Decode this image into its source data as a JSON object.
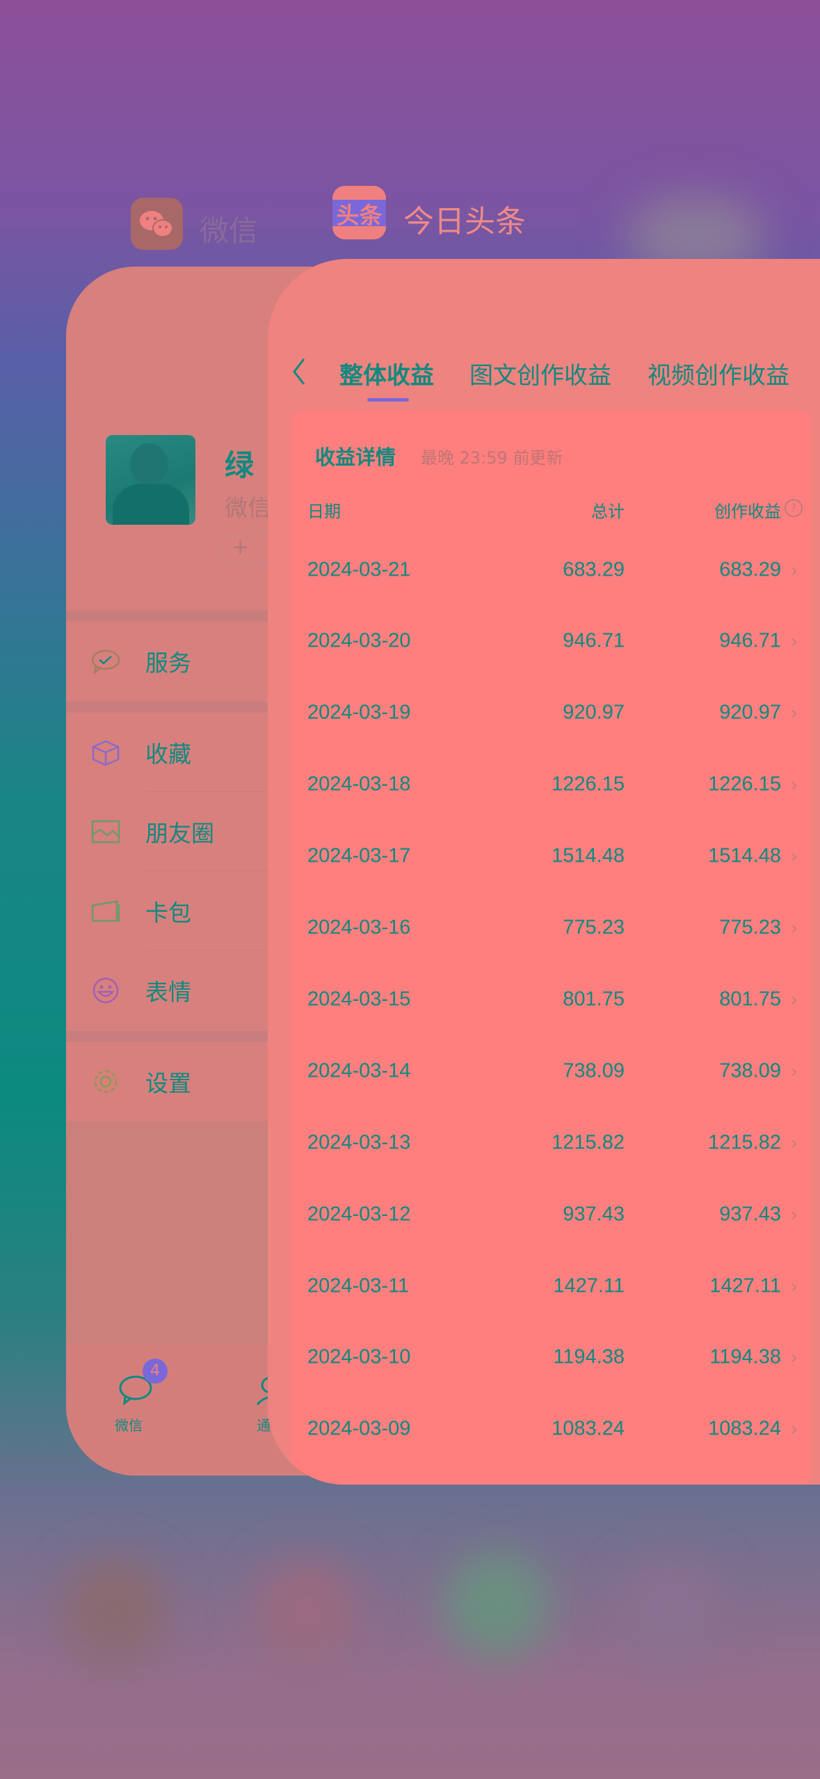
{
  "switcher": {
    "apps": [
      {
        "name": "微信",
        "icon": "wechat-logo"
      },
      {
        "name": "今日头条",
        "icon": "toutiao-logo",
        "icon_text": "头条"
      }
    ]
  },
  "wechat": {
    "profile": {
      "name": "绿",
      "subtitle": "微信",
      "status_button": "+"
    },
    "menu": [
      {
        "label": "服务",
        "icon": "service-icon"
      },
      {
        "label": "收藏",
        "icon": "favorites-icon"
      },
      {
        "label": "朋友圈",
        "icon": "moments-icon"
      },
      {
        "label": "卡包",
        "icon": "card-wallet-icon"
      },
      {
        "label": "表情",
        "icon": "sticker-icon"
      },
      {
        "label": "设置",
        "icon": "settings-icon"
      }
    ],
    "tabbar": [
      {
        "label": "微信",
        "badge": "4"
      },
      {
        "label": "通"
      }
    ]
  },
  "toutiao": {
    "tabs": [
      {
        "label": "整体收益",
        "active": true
      },
      {
        "label": "图文创作收益"
      },
      {
        "label": "视频创作收益"
      }
    ],
    "panel": {
      "title": "收益详情",
      "update_note": "最晚 23:59 前更新",
      "headers": {
        "date": "日期",
        "total": "总计",
        "creation": "创作收益"
      },
      "rows": [
        {
          "date": "2024-03-21",
          "total": "683.29",
          "creation": "683.29"
        },
        {
          "date": "2024-03-20",
          "total": "946.71",
          "creation": "946.71"
        },
        {
          "date": "2024-03-19",
          "total": "920.97",
          "creation": "920.97"
        },
        {
          "date": "2024-03-18",
          "total": "1226.15",
          "creation": "1226.15"
        },
        {
          "date": "2024-03-17",
          "total": "1514.48",
          "creation": "1514.48"
        },
        {
          "date": "2024-03-16",
          "total": "775.23",
          "creation": "775.23"
        },
        {
          "date": "2024-03-15",
          "total": "801.75",
          "creation": "801.75"
        },
        {
          "date": "2024-03-14",
          "total": "738.09",
          "creation": "738.09"
        },
        {
          "date": "2024-03-13",
          "total": "1215.82",
          "creation": "1215.82"
        },
        {
          "date": "2024-03-12",
          "total": "937.43",
          "creation": "937.43"
        },
        {
          "date": "2024-03-11",
          "total": "1427.11",
          "creation": "1427.11"
        },
        {
          "date": "2024-03-10",
          "total": "1194.38",
          "creation": "1194.38"
        },
        {
          "date": "2024-03-09",
          "total": "1083.24",
          "creation": "1083.24"
        }
      ]
    }
  },
  "colors": {
    "text": "#0e8a80",
    "accent": "#7b68d8",
    "card": "#ef8380",
    "panel": "#ff7f7f"
  }
}
